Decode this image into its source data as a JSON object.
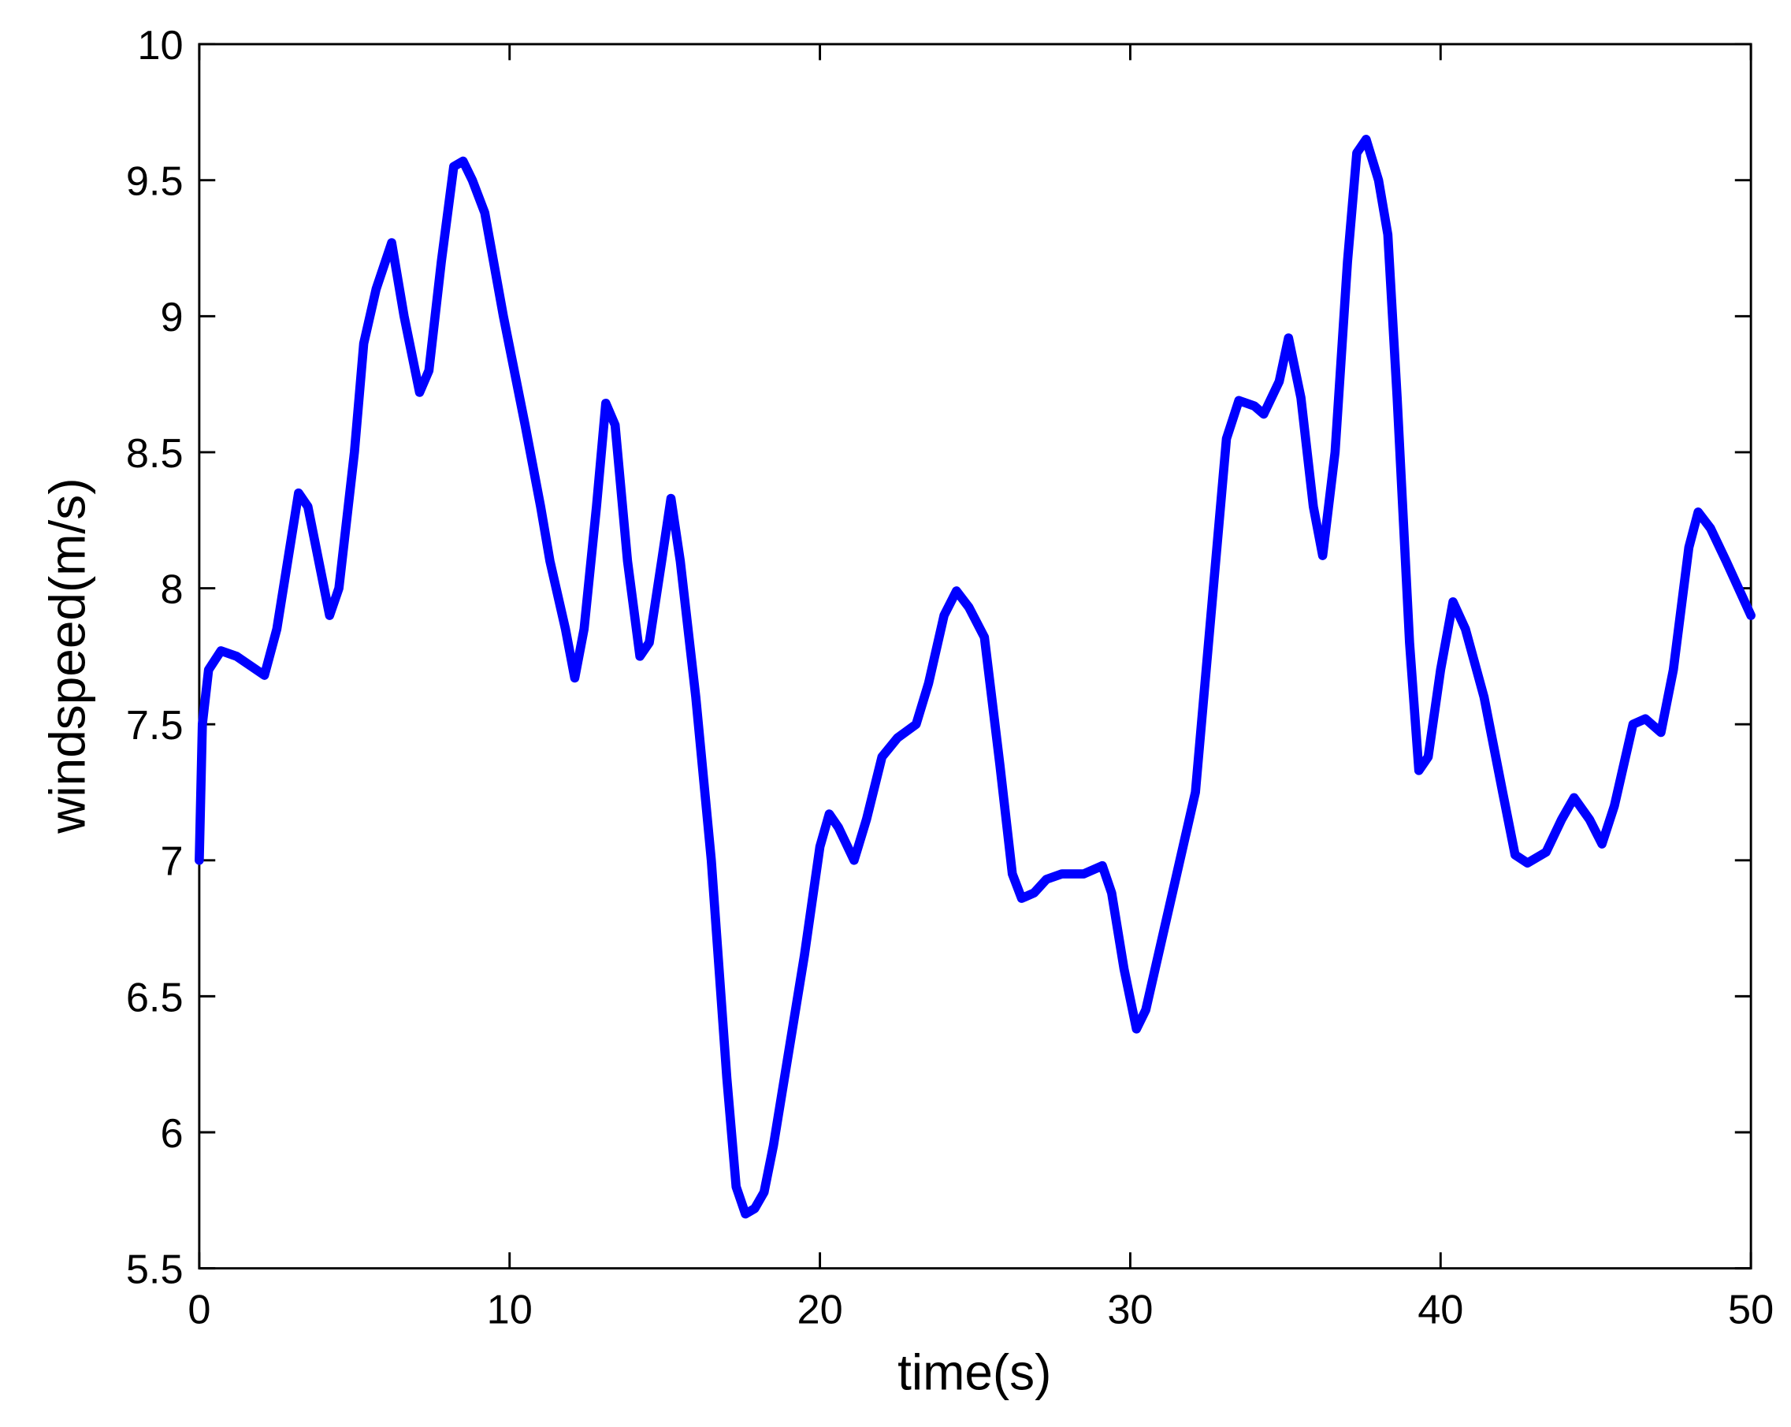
{
  "chart_data": {
    "type": "line",
    "xlabel": "time(s)",
    "ylabel": "windspeed(m/s)",
    "xlim": [
      0,
      50
    ],
    "xticks": [
      0,
      10,
      20,
      30,
      40,
      50
    ],
    "ylim": [
      5.5,
      10
    ],
    "yticks": [
      5.5,
      6,
      6.5,
      7,
      7.5,
      8,
      8.5,
      9,
      9.5,
      10
    ],
    "grid": false,
    "series": [
      {
        "color": "#0000ff",
        "x": [
          0,
          0.1,
          0.3,
          0.7,
          1.2,
          2.1,
          2.5,
          3.2,
          3.5,
          4.2,
          4.5,
          5.0,
          5.3,
          5.7,
          6.2,
          6.6,
          7.1,
          7.4,
          7.8,
          8.2,
          8.5,
          8.8,
          9.2,
          9.8,
          10.5,
          11.0,
          11.3,
          11.8,
          12.1,
          12.4,
          12.8,
          13.1,
          13.4,
          13.8,
          14.2,
          14.5,
          14.9,
          15.2,
          15.5,
          16.0,
          16.5,
          17.0,
          17.3,
          17.6,
          17.9,
          18.2,
          18.5,
          19.0,
          19.5,
          20.0,
          20.3,
          20.6,
          21.1,
          21.5,
          22.0,
          22.5,
          23.1,
          23.5,
          24.0,
          24.4,
          24.8,
          25.3,
          25.8,
          26.2,
          26.5,
          26.9,
          27.3,
          27.8,
          28.5,
          29.1,
          29.4,
          29.8,
          30.2,
          30.5,
          31.0,
          31.5,
          32.1,
          32.6,
          33.1,
          33.5,
          34.0,
          34.3,
          34.8,
          35.1,
          35.5,
          35.9,
          36.2,
          36.6,
          37.0,
          37.3,
          37.6,
          38.0,
          38.3,
          38.6,
          39.0,
          39.3,
          39.6,
          40.0,
          40.4,
          40.8,
          41.4,
          42.0,
          42.4,
          42.8,
          43.4,
          43.9,
          44.3,
          44.8,
          45.2,
          45.6,
          46.2,
          46.6,
          47.1,
          47.5,
          48.0,
          48.3,
          48.7,
          49.2,
          50.0
        ],
        "values": [
          7.0,
          7.5,
          7.7,
          7.77,
          7.75,
          7.68,
          7.85,
          8.35,
          8.3,
          7.9,
          8.0,
          8.5,
          8.9,
          9.1,
          9.27,
          9.0,
          8.72,
          8.8,
          9.2,
          9.55,
          9.57,
          9.5,
          9.38,
          9.0,
          8.6,
          8.3,
          8.1,
          7.85,
          7.67,
          7.85,
          8.3,
          8.68,
          8.6,
          8.1,
          7.75,
          7.8,
          8.1,
          8.33,
          8.1,
          7.6,
          7.0,
          6.2,
          5.8,
          5.7,
          5.72,
          5.78,
          5.95,
          6.3,
          6.65,
          7.05,
          7.17,
          7.12,
          7.0,
          7.15,
          7.38,
          7.45,
          7.5,
          7.65,
          7.9,
          7.99,
          7.93,
          7.82,
          7.35,
          6.95,
          6.86,
          6.88,
          6.93,
          6.95,
          6.95,
          6.98,
          6.88,
          6.6,
          6.38,
          6.45,
          6.7,
          6.95,
          7.25,
          7.9,
          8.55,
          8.69,
          8.67,
          8.64,
          8.76,
          8.92,
          8.7,
          8.3,
          8.12,
          8.5,
          9.2,
          9.6,
          9.65,
          9.5,
          9.3,
          8.7,
          7.8,
          7.33,
          7.38,
          7.7,
          7.95,
          7.85,
          7.6,
          7.25,
          7.02,
          6.99,
          7.03,
          7.15,
          7.23,
          7.15,
          7.06,
          7.2,
          7.5,
          7.52,
          7.47,
          7.7,
          8.15,
          8.28,
          8.22,
          8.1,
          7.9
        ]
      }
    ]
  }
}
